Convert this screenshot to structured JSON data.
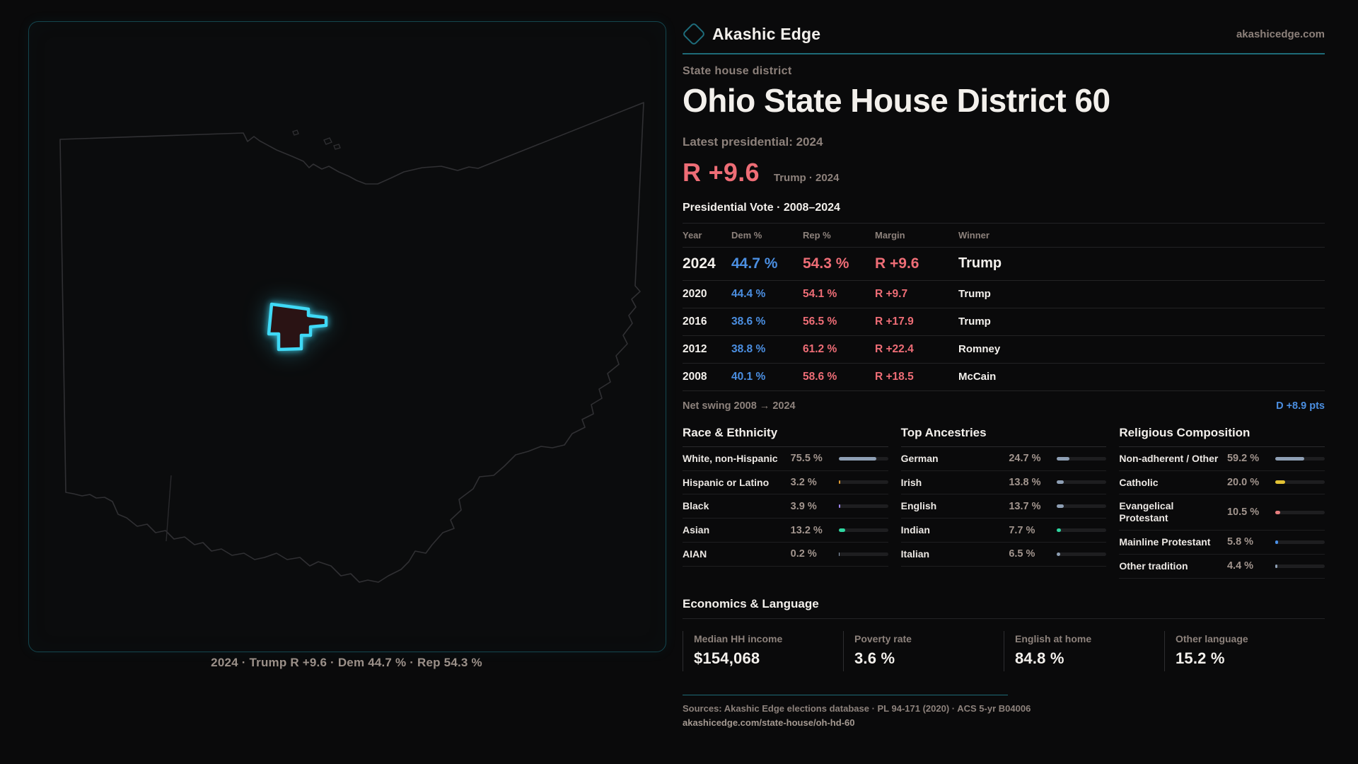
{
  "brand": {
    "name": "Akashic Edge",
    "site": "akashicedge.com"
  },
  "page": {
    "kicker": "State house district",
    "title": "Ohio State House District 60",
    "latest_label": "Latest presidential: 2024",
    "headline_margin": "R +9.6",
    "headline_note": "Trump · 2024"
  },
  "map": {
    "caption": "2024 · Trump R +9.6 · Dem 44.7 % · Rep 54.3 %",
    "district_color": "#3fd9f6"
  },
  "vote_table": {
    "title": "Presidential Vote · 2008–2024",
    "columns": [
      "Year",
      "Dem %",
      "Rep %",
      "Margin",
      "Winner"
    ],
    "rows": [
      {
        "year": "2024",
        "dem": "44.7 %",
        "rep": "54.3 %",
        "margin": "R +9.6",
        "winner": "Trump"
      },
      {
        "year": "2020",
        "dem": "44.4 %",
        "rep": "54.1 %",
        "margin": "R +9.7",
        "winner": "Trump"
      },
      {
        "year": "2016",
        "dem": "38.6 %",
        "rep": "56.5 %",
        "margin": "R +17.9",
        "winner": "Trump"
      },
      {
        "year": "2012",
        "dem": "38.8 %",
        "rep": "61.2 %",
        "margin": "R +22.4",
        "winner": "Romney"
      },
      {
        "year": "2008",
        "dem": "40.1 %",
        "rep": "58.6 %",
        "margin": "R +18.5",
        "winner": "McCain"
      }
    ],
    "swing_label": "Net swing 2008 → 2024",
    "swing_value": "D +8.9 pts"
  },
  "demographics": {
    "race": {
      "title": "Race & Ethnicity",
      "rows": [
        {
          "label": "White, non-Hispanic",
          "value": "75.5 %",
          "pct": 75.5,
          "color": "#8e9fb4"
        },
        {
          "label": "Hispanic or Latino",
          "value": "3.2 %",
          "pct": 3.2,
          "color": "#dd9a33"
        },
        {
          "label": "Black",
          "value": "3.9 %",
          "pct": 3.9,
          "color": "#9d85ef"
        },
        {
          "label": "Asian",
          "value": "13.2 %",
          "pct": 13.2,
          "color": "#2fd6a0"
        },
        {
          "label": "AIAN",
          "value": "0.2 %",
          "pct": 0.2,
          "color": "#8e9fb4"
        }
      ]
    },
    "ancestries": {
      "title": "Top Ancestries",
      "rows": [
        {
          "label": "German",
          "value": "24.7 %",
          "pct": 24.7,
          "color": "#8e9fb4"
        },
        {
          "label": "Irish",
          "value": "13.8 %",
          "pct": 13.8,
          "color": "#8e9fb4"
        },
        {
          "label": "English",
          "value": "13.7 %",
          "pct": 13.7,
          "color": "#8e9fb4"
        },
        {
          "label": "Indian",
          "value": "7.7 %",
          "pct": 7.7,
          "color": "#2fd6a0"
        },
        {
          "label": "Italian",
          "value": "6.5 %",
          "pct": 6.5,
          "color": "#8e9fb4"
        }
      ]
    },
    "religion": {
      "title": "Religious Composition",
      "rows": [
        {
          "label": "Non-adherent / Other",
          "value": "59.2 %",
          "pct": 59.2,
          "color": "#8e9fb4"
        },
        {
          "label": "Catholic",
          "value": "20.0 %",
          "pct": 20.0,
          "color": "#e3c234"
        },
        {
          "label": "Evangelical Protestant",
          "value": "10.5 %",
          "pct": 10.5,
          "color": "#e77d7d"
        },
        {
          "label": "Mainline Protestant",
          "value": "5.8 %",
          "pct": 5.8,
          "color": "#4a90e8"
        },
        {
          "label": "Other tradition",
          "value": "4.4 %",
          "pct": 4.4,
          "color": "#8e9fb4"
        }
      ]
    }
  },
  "economics": {
    "title": "Economics & Language",
    "stats": [
      {
        "label": "Median HH income",
        "value": "$154,068"
      },
      {
        "label": "Poverty rate",
        "value": "3.6 %"
      },
      {
        "label": "English at home",
        "value": "84.8 %"
      },
      {
        "label": "Other language",
        "value": "15.2 %"
      }
    ]
  },
  "footer": {
    "sources": "Sources: Akashic Edge elections database · PL 94-171 (2020) · ACS 5-yr B04006",
    "permalink": "akashicedge.com/state-house/oh-hd-60"
  },
  "colors": {
    "dem_blue": "#4b8fe2",
    "rep_red": "#ee6d76",
    "accent_teal": "#1d6a78",
    "district_cyan": "#3fd9f6"
  }
}
